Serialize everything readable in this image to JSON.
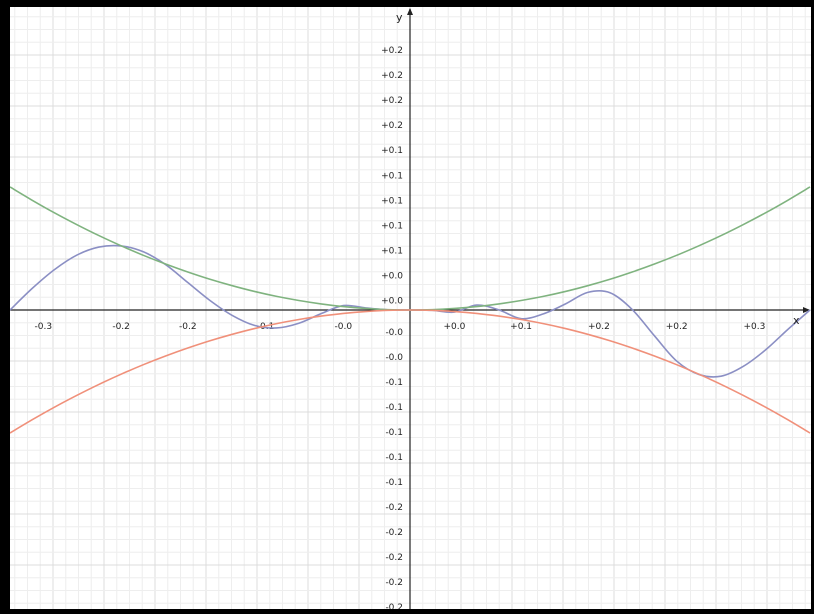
{
  "chart_data": {
    "type": "line",
    "title": "",
    "xlabel": "x",
    "ylabel": "y",
    "xlim": [
      -0.36,
      0.36
    ],
    "ylim": [
      -0.24,
      0.24
    ],
    "grid": true,
    "x_tick_labels": [
      "-0.3",
      "-0.2",
      "-0.2",
      "-0.1",
      "-0.0",
      "+0.0",
      "+0.1",
      "+0.2",
      "+0.2",
      "+0.3"
    ],
    "y_tick_labels_upper": [
      "+0.2",
      "+0.2",
      "+0.2",
      "+0.2",
      "+0.1",
      "+0.1",
      "+0.1",
      "+0.1",
      "+0.1",
      "+0.0",
      "+0.0"
    ],
    "y_tick_labels_lower": [
      "-0.0",
      "-0.0",
      "-0.1",
      "-0.1",
      "-0.1",
      "-0.1",
      "-0.1",
      "-0.2",
      "-0.2",
      "-0.2",
      "-0.2",
      "-0.2"
    ],
    "x_ticks": [
      -0.33,
      -0.26,
      -0.2,
      -0.13,
      -0.06,
      0.04,
      0.1,
      0.17,
      0.24,
      0.31
    ],
    "y_ticks_upper": [
      0.2214,
      0.2001,
      0.1788,
      0.1575,
      0.1362,
      0.1148,
      0.0935,
      0.0722,
      0.0509,
      0.0296,
      0.0083
    ],
    "y_ticks_lower": [
      -0.0189,
      -0.0402,
      -0.0615,
      -0.0828,
      -0.1041,
      -0.1254,
      -0.1467,
      -0.168,
      -0.1893,
      -0.2106,
      -0.2319,
      -0.2532
    ],
    "series": [
      {
        "color": "#8b8fc4",
        "x": [
          -0.36,
          -0.34,
          -0.32,
          -0.3,
          -0.28,
          -0.26,
          -0.24,
          -0.22,
          -0.2,
          -0.18,
          -0.16,
          -0.14,
          -0.12,
          -0.1,
          -0.08,
          -0.06,
          -0.04,
          -0.02,
          0.0,
          0.02,
          0.04,
          0.06,
          0.08,
          0.1,
          0.12,
          0.14,
          0.16,
          0.18,
          0.2,
          0.22,
          0.24,
          0.26,
          0.28,
          0.3,
          0.32,
          0.34,
          0.36
        ],
        "y": [
          0.0,
          0.0184,
          0.0344,
          0.0467,
          0.0536,
          0.0546,
          0.0496,
          0.0387,
          0.0234,
          0.0081,
          -0.0046,
          -0.0131,
          -0.0153,
          -0.0113,
          -0.0031,
          0.0038,
          0.0018,
          0.0002,
          0.0,
          -0.0003,
          -0.0018,
          0.0042,
          0.0001,
          -0.0074,
          -0.0033,
          0.0052,
          0.015,
          0.0147,
          0.0004,
          -0.022,
          -0.0435,
          -0.0549,
          -0.0564,
          -0.048,
          -0.034,
          -0.0166,
          0.0
        ]
      },
      {
        "color": "#7fb37f",
        "x": [
          -0.36,
          -0.34,
          -0.32,
          -0.3,
          -0.28,
          -0.26,
          -0.24,
          -0.22,
          -0.2,
          -0.18,
          -0.16,
          -0.14,
          -0.12,
          -0.1,
          -0.08,
          -0.06,
          -0.04,
          -0.02,
          0.0,
          0.02,
          0.04,
          0.06,
          0.08,
          0.1,
          0.12,
          0.14,
          0.16,
          0.18,
          0.2,
          0.22,
          0.24,
          0.26,
          0.28,
          0.3,
          0.32,
          0.34,
          0.36
        ],
        "y": [
          0.1048,
          0.0935,
          0.0828,
          0.0728,
          0.0634,
          0.0547,
          0.0466,
          0.0392,
          0.0324,
          0.0262,
          0.0207,
          0.0158,
          0.0116,
          0.0081,
          0.0052,
          0.0029,
          0.0013,
          0.0003,
          0.0,
          0.0003,
          0.0013,
          0.0029,
          0.0052,
          0.0081,
          0.0116,
          0.0158,
          0.0207,
          0.0262,
          0.0324,
          0.0392,
          0.0466,
          0.0547,
          0.0634,
          0.0728,
          0.0828,
          0.0935,
          0.1048
        ]
      },
      {
        "color": "#f0907a",
        "x": [
          -0.36,
          -0.34,
          -0.32,
          -0.3,
          -0.28,
          -0.26,
          -0.24,
          -0.22,
          -0.2,
          -0.18,
          -0.16,
          -0.14,
          -0.12,
          -0.1,
          -0.08,
          -0.06,
          -0.04,
          -0.02,
          0.0,
          0.02,
          0.04,
          0.06,
          0.08,
          0.1,
          0.12,
          0.14,
          0.16,
          0.18,
          0.2,
          0.22,
          0.24,
          0.26,
          0.28,
          0.3,
          0.32,
          0.34,
          0.36
        ],
        "y": [
          -0.1048,
          -0.0935,
          -0.0828,
          -0.0728,
          -0.0634,
          -0.0547,
          -0.0466,
          -0.0392,
          -0.0324,
          -0.0262,
          -0.0207,
          -0.0158,
          -0.0116,
          -0.0081,
          -0.0052,
          -0.0029,
          -0.0013,
          -0.0003,
          0.0,
          -0.0003,
          -0.0013,
          -0.0029,
          -0.0052,
          -0.0081,
          -0.0116,
          -0.0158,
          -0.0207,
          -0.0262,
          -0.0324,
          -0.0392,
          -0.0466,
          -0.0547,
          -0.0634,
          -0.0728,
          -0.0828,
          -0.0935,
          -0.1048
        ]
      }
    ],
    "colors": {
      "grid_minor": "#eeeeee",
      "grid_major": "#dcdcdc",
      "axis": "#222222"
    }
  }
}
